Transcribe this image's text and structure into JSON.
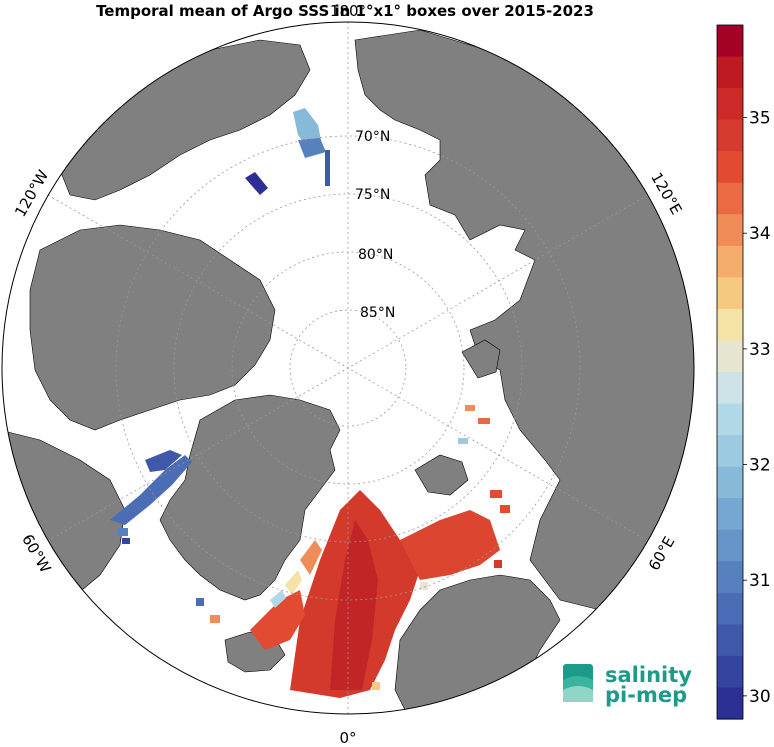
{
  "title": "Temporal mean of Argo SSS in 1°x1° boxes over 2015-2023",
  "longitude_labels": {
    "top": "180°",
    "bottom": "0°",
    "upper_left": "120°W",
    "upper_right": "120°E",
    "lower_left": "60°W",
    "lower_right": "60°E"
  },
  "latitude_labels": [
    "70°N",
    "75°N",
    "80°N",
    "85°N"
  ],
  "colorbar": {
    "ticks": [
      "35",
      "34",
      "33",
      "32",
      "31",
      "30"
    ],
    "min": 29.8,
    "max": 35.8,
    "colors": [
      "#a50026",
      "#be1a22",
      "#cc2a28",
      "#d73a2f",
      "#e24b32",
      "#ea6b43",
      "#f08c57",
      "#f4ad6c",
      "#f6c980",
      "#f5e3a6",
      "#e6e5d0",
      "#cde3e8",
      "#b1d8e6",
      "#9ccbe1",
      "#87b9d9",
      "#74a7d1",
      "#6494c8",
      "#5681be",
      "#4a6db5",
      "#3f58aa",
      "#35449f",
      "#2c3094"
    ]
  },
  "logo": {
    "line1": "salinity",
    "line2": "pi-mep"
  },
  "colors": {
    "land": "#808080",
    "ocean_no_data": "#ffffff",
    "gridline": "#999999"
  }
}
